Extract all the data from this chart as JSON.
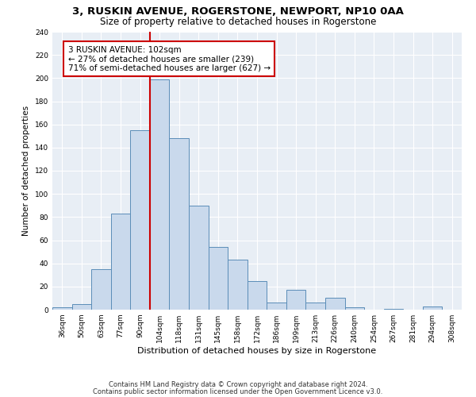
{
  "title": "3, RUSKIN AVENUE, ROGERSTONE, NEWPORT, NP10 0AA",
  "subtitle": "Size of property relative to detached houses in Rogerstone",
  "xlabel": "Distribution of detached houses by size in Rogerstone",
  "ylabel": "Number of detached properties",
  "categories": [
    "36sqm",
    "50sqm",
    "63sqm",
    "77sqm",
    "90sqm",
    "104sqm",
    "118sqm",
    "131sqm",
    "145sqm",
    "158sqm",
    "172sqm",
    "186sqm",
    "199sqm",
    "213sqm",
    "226sqm",
    "240sqm",
    "254sqm",
    "267sqm",
    "281sqm",
    "294sqm",
    "308sqm"
  ],
  "values": [
    2,
    5,
    35,
    83,
    155,
    199,
    148,
    90,
    54,
    43,
    25,
    6,
    17,
    6,
    10,
    2,
    0,
    1,
    0,
    3,
    0
  ],
  "bar_color": "#c9d9ec",
  "bar_edge_color": "#5b8db8",
  "vline_x_index": 5,
  "vline_color": "#cc0000",
  "annotation_text": "3 RUSKIN AVENUE: 102sqm\n← 27% of detached houses are smaller (239)\n71% of semi-detached houses are larger (627) →",
  "annotation_box_color": "white",
  "annotation_box_edge": "#cc0000",
  "ylim": [
    0,
    240
  ],
  "yticks": [
    0,
    20,
    40,
    60,
    80,
    100,
    120,
    140,
    160,
    180,
    200,
    220,
    240
  ],
  "background_color": "#e8eef5",
  "footer1": "Contains HM Land Registry data © Crown copyright and database right 2024.",
  "footer2": "Contains public sector information licensed under the Open Government Licence v3.0.",
  "title_fontsize": 9.5,
  "subtitle_fontsize": 8.5,
  "xlabel_fontsize": 8,
  "ylabel_fontsize": 7.5,
  "tick_fontsize": 6.5,
  "annotation_fontsize": 7.5,
  "footer_fontsize": 6
}
